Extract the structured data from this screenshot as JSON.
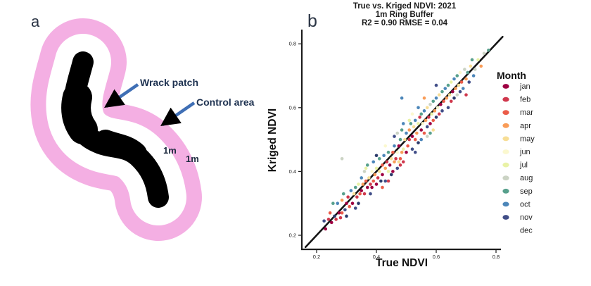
{
  "panel_a": {
    "label": "a",
    "annotations": {
      "wrack_label": "Wrack patch",
      "control_label": "Control area",
      "buffer_width_inner": "1m",
      "buffer_width_outer": "1m"
    },
    "colors": {
      "buffer_pink": "#F4AFE3",
      "inner_ring_white": "#FFFFFF",
      "patch_black": "#000000",
      "arrow_blue": "#3F6FB5",
      "annotation_text": "#1D3150",
      "measure_text": "#1D2B3F"
    }
  },
  "panel_b": {
    "label": "b",
    "title_line1": "True vs. Kriged NDVI: 2021",
    "title_line2": "1m Ring Buffer",
    "title_line3": "R2 = 0.90 RMSE = 0.04",
    "xlabel": "True NDVI",
    "ylabel": "Kriged NDVI",
    "legend_title": "Month"
  },
  "chart_data": {
    "type": "scatter",
    "title": "True vs. Kriged NDVI: 2021",
    "subtitle": "1m Ring Buffer",
    "stats_text": "R2 = 0.90 RMSE = 0.04",
    "r2": 0.9,
    "rmse": 0.04,
    "xlabel": "True NDVI",
    "ylabel": "Kriged NDVI",
    "xlim": [
      0.14,
      0.84
    ],
    "ylim": [
      0.15,
      0.84
    ],
    "x_ticks": [
      0.2,
      0.4,
      0.6,
      0.8
    ],
    "y_ticks": [
      0.2,
      0.4,
      0.6,
      0.8
    ],
    "grid": false,
    "legend_position": "right",
    "identity_line": {
      "from": 0.163,
      "to": 0.822,
      "color": "#141414"
    },
    "series": [
      {
        "name": "jan",
        "color": "#9E0142",
        "legend_marker": true,
        "points": [
          [
            0.23,
            0.22
          ],
          [
            0.25,
            0.24
          ],
          [
            0.275,
            0.27
          ],
          [
            0.3,
            0.3
          ],
          [
            0.32,
            0.3
          ],
          [
            0.35,
            0.34
          ],
          [
            0.37,
            0.35
          ],
          [
            0.385,
            0.35
          ],
          [
            0.4,
            0.36
          ],
          [
            0.42,
            0.39
          ],
          [
            0.445,
            0.42
          ],
          [
            0.455,
            0.4
          ],
          [
            0.475,
            0.48
          ],
          [
            0.5,
            0.46
          ],
          [
            0.52,
            0.51
          ],
          [
            0.55,
            0.53
          ],
          [
            0.58,
            0.55
          ],
          [
            0.615,
            0.61
          ],
          [
            0.655,
            0.65
          ]
        ]
      },
      {
        "name": "feb",
        "color": "#D0384D",
        "legend_marker": true,
        "points": [
          [
            0.24,
            0.25
          ],
          [
            0.265,
            0.25
          ],
          [
            0.28,
            0.255
          ],
          [
            0.305,
            0.32
          ],
          [
            0.335,
            0.32
          ],
          [
            0.36,
            0.33
          ],
          [
            0.38,
            0.36
          ],
          [
            0.405,
            0.38
          ],
          [
            0.435,
            0.43
          ],
          [
            0.465,
            0.44
          ],
          [
            0.44,
            0.37
          ],
          [
            0.48,
            0.42
          ],
          [
            0.49,
            0.43
          ],
          [
            0.51,
            0.5
          ],
          [
            0.545,
            0.57
          ],
          [
            0.575,
            0.57
          ],
          [
            0.61,
            0.58
          ],
          [
            0.65,
            0.62
          ],
          [
            0.7,
            0.64
          ]
        ]
      },
      {
        "name": "mar",
        "color": "#EB5C49",
        "legend_marker": true,
        "points": [
          [
            0.245,
            0.27
          ],
          [
            0.285,
            0.27
          ],
          [
            0.31,
            0.29
          ],
          [
            0.345,
            0.33
          ],
          [
            0.365,
            0.37
          ],
          [
            0.39,
            0.37
          ],
          [
            0.42,
            0.42
          ],
          [
            0.42,
            0.35
          ],
          [
            0.455,
            0.46
          ],
          [
            0.48,
            0.44
          ],
          [
            0.505,
            0.48
          ],
          [
            0.53,
            0.5
          ],
          [
            0.56,
            0.52
          ],
          [
            0.59,
            0.56
          ],
          [
            0.625,
            0.62
          ],
          [
            0.685,
            0.68
          ]
        ]
      },
      {
        "name": "apr",
        "color": "#F99C58",
        "legend_marker": true,
        "points": [
          [
            0.285,
            0.31
          ],
          [
            0.355,
            0.36
          ],
          [
            0.395,
            0.39
          ],
          [
            0.43,
            0.41
          ],
          [
            0.46,
            0.43
          ],
          [
            0.485,
            0.46
          ],
          [
            0.51,
            0.53
          ],
          [
            0.535,
            0.52
          ],
          [
            0.565,
            0.56
          ],
          [
            0.595,
            0.59
          ],
          [
            0.56,
            0.63
          ],
          [
            0.635,
            0.63
          ],
          [
            0.665,
            0.66
          ],
          [
            0.7,
            0.69
          ],
          [
            0.75,
            0.73
          ]
        ]
      },
      {
        "name": "may",
        "color": "#F7DE96",
        "legend_marker": true,
        "points": [
          [
            0.325,
            0.33
          ],
          [
            0.375,
            0.38
          ],
          [
            0.41,
            0.4
          ],
          [
            0.45,
            0.44
          ],
          [
            0.475,
            0.43
          ],
          [
            0.495,
            0.5
          ],
          [
            0.525,
            0.54
          ],
          [
            0.57,
            0.6
          ],
          [
            0.59,
            0.53
          ],
          [
            0.61,
            0.64
          ],
          [
            0.645,
            0.64
          ],
          [
            0.675,
            0.67
          ],
          [
            0.715,
            0.73
          ]
        ]
      },
      {
        "name": "jun",
        "color": "#FBF8CF",
        "legend_marker": true,
        "points": [
          [
            0.385,
            0.4
          ],
          [
            0.43,
            0.48
          ],
          [
            0.47,
            0.46
          ],
          [
            0.52,
            0.58
          ],
          [
            0.555,
            0.55
          ],
          [
            0.605,
            0.6
          ],
          [
            0.68,
            0.71
          ]
        ]
      },
      {
        "name": "jul",
        "color": "#E9F2A6",
        "legend_marker": true,
        "points": [
          [
            0.34,
            0.36
          ],
          [
            0.365,
            0.41
          ],
          [
            0.4,
            0.41
          ],
          [
            0.44,
            0.4
          ],
          [
            0.49,
            0.47
          ],
          [
            0.51,
            0.56
          ],
          [
            0.54,
            0.55
          ],
          [
            0.585,
            0.58
          ],
          [
            0.65,
            0.68
          ],
          [
            0.74,
            0.75
          ]
        ]
      },
      {
        "name": "aug",
        "color": "#CBD3C4",
        "legend_marker": true,
        "points": [
          [
            0.285,
            0.44
          ],
          [
            0.36,
            0.4
          ],
          [
            0.47,
            0.52
          ],
          [
            0.57,
            0.51
          ],
          [
            0.58,
            0.61
          ],
          [
            0.67,
            0.64
          ],
          [
            0.695,
            0.72
          ],
          [
            0.73,
            0.72
          ],
          [
            0.76,
            0.77
          ]
        ]
      },
      {
        "name": "sep",
        "color": "#57A08C",
        "legend_marker": true,
        "points": [
          [
            0.255,
            0.3
          ],
          [
            0.29,
            0.33
          ],
          [
            0.33,
            0.35
          ],
          [
            0.37,
            0.42
          ],
          [
            0.41,
            0.44
          ],
          [
            0.44,
            0.46
          ],
          [
            0.48,
            0.5
          ],
          [
            0.485,
            0.53
          ],
          [
            0.515,
            0.55
          ],
          [
            0.55,
            0.58
          ],
          [
            0.58,
            0.52
          ],
          [
            0.59,
            0.62
          ],
          [
            0.62,
            0.65
          ],
          [
            0.64,
            0.67
          ],
          [
            0.67,
            0.7
          ],
          [
            0.705,
            0.71
          ],
          [
            0.72,
            0.75
          ],
          [
            0.775,
            0.78
          ]
        ]
      },
      {
        "name": "oct",
        "color": "#4C86B9",
        "legend_marker": true,
        "points": [
          [
            0.27,
            0.3
          ],
          [
            0.315,
            0.34
          ],
          [
            0.35,
            0.38
          ],
          [
            0.39,
            0.43
          ],
          [
            0.425,
            0.45
          ],
          [
            0.46,
            0.48
          ],
          [
            0.5,
            0.52
          ],
          [
            0.49,
            0.55
          ],
          [
            0.53,
            0.56
          ],
          [
            0.54,
            0.6
          ],
          [
            0.55,
            0.5
          ],
          [
            0.56,
            0.59
          ],
          [
            0.6,
            0.63
          ],
          [
            0.63,
            0.66
          ],
          [
            0.485,
            0.63
          ],
          [
            0.66,
            0.69
          ],
          [
            0.69,
            0.66
          ],
          [
            0.725,
            0.7
          ]
        ]
      },
      {
        "name": "nov",
        "color": "#414E88",
        "legend_marker": true,
        "points": [
          [
            0.225,
            0.245
          ],
          [
            0.295,
            0.28
          ],
          [
            0.33,
            0.285
          ],
          [
            0.38,
            0.33
          ],
          [
            0.43,
            0.37
          ],
          [
            0.47,
            0.41
          ],
          [
            0.46,
            0.51
          ],
          [
            0.52,
            0.47
          ],
          [
            0.53,
            0.46
          ],
          [
            0.57,
            0.54
          ],
          [
            0.6,
            0.67
          ],
          [
            0.62,
            0.59
          ],
          [
            0.64,
            0.6
          ],
          [
            0.68,
            0.65
          ],
          [
            0.71,
            0.68
          ]
        ]
      },
      {
        "name": "dec",
        "color": "#2C3B6C",
        "legend_marker": false,
        "points": [
          [
            0.26,
            0.26
          ],
          [
            0.3,
            0.26
          ],
          [
            0.34,
            0.3
          ],
          [
            0.415,
            0.37
          ],
          [
            0.45,
            0.39
          ],
          [
            0.4,
            0.45
          ],
          [
            0.54,
            0.49
          ],
          [
            0.6,
            0.57
          ],
          [
            0.66,
            0.63
          ]
        ]
      }
    ]
  }
}
